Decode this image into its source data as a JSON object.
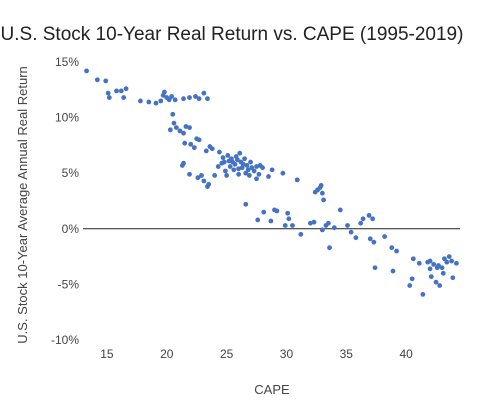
{
  "chart_data": {
    "type": "scatter",
    "title": "U.S. Stock 10-Year Real Return vs. CAPE (1995-2019)",
    "xlabel": "CAPE",
    "ylabel": "U.S. Stock 10-Year Average Annual Real Return",
    "xlim": [
      13,
      44.5
    ],
    "ylim": [
      -10,
      15
    ],
    "x_ticks": [
      15,
      20,
      25,
      30,
      35,
      40
    ],
    "y_ticks": [
      -10,
      -5,
      0,
      5,
      10,
      15
    ],
    "y_tick_format": "percent",
    "grid": false,
    "legend": "none",
    "point_color": "#4472c4",
    "series": [
      {
        "points": [
          [
            13.3,
            14.2
          ],
          [
            14.2,
            13.4
          ],
          [
            14.9,
            13.3
          ],
          [
            15.1,
            12.2
          ],
          [
            15.2,
            11.8
          ],
          [
            15.8,
            12.4
          ],
          [
            16.2,
            12.4
          ],
          [
            16.4,
            11.8
          ],
          [
            16.6,
            12.6
          ],
          [
            17.8,
            11.5
          ],
          [
            18.5,
            11.4
          ],
          [
            19.1,
            11.3
          ],
          [
            19.5,
            11.5
          ],
          [
            19.7,
            12.0
          ],
          [
            19.8,
            12.3
          ],
          [
            20.0,
            11.8
          ],
          [
            20.2,
            11.6
          ],
          [
            20.4,
            11.9
          ],
          [
            20.7,
            11.6
          ],
          [
            21.4,
            11.7
          ],
          [
            21.9,
            11.8
          ],
          [
            22.4,
            11.9
          ],
          [
            22.7,
            11.7
          ],
          [
            23.1,
            12.2
          ],
          [
            23.4,
            11.7
          ],
          [
            20.3,
            8.9
          ],
          [
            20.5,
            10.3
          ],
          [
            20.6,
            9.5
          ],
          [
            20.8,
            9.1
          ],
          [
            21.1,
            8.8
          ],
          [
            21.4,
            8.6
          ],
          [
            21.6,
            9.2
          ],
          [
            21.9,
            9.1
          ],
          [
            21.3,
            5.7
          ],
          [
            21.4,
            5.9
          ],
          [
            21.5,
            7.7
          ],
          [
            21.9,
            4.9
          ],
          [
            22.0,
            7.6
          ],
          [
            22.3,
            7.3
          ],
          [
            22.5,
            8.1
          ],
          [
            22.7,
            8.0
          ],
          [
            22.6,
            4.6
          ],
          [
            22.9,
            4.8
          ],
          [
            23.1,
            4.3
          ],
          [
            23.3,
            7.0
          ],
          [
            23.4,
            3.8
          ],
          [
            23.5,
            4.0
          ],
          [
            23.6,
            7.4
          ],
          [
            23.8,
            7.2
          ],
          [
            24.0,
            4.8
          ],
          [
            24.3,
            5.6
          ],
          [
            24.4,
            6.9
          ],
          [
            24.6,
            5.9
          ],
          [
            24.7,
            6.4
          ],
          [
            24.8,
            6.0
          ],
          [
            24.9,
            5.2
          ],
          [
            25.0,
            4.8
          ],
          [
            25.1,
            6.6
          ],
          [
            25.2,
            6.1
          ],
          [
            25.3,
            5.6
          ],
          [
            25.4,
            6.3
          ],
          [
            25.5,
            6.0
          ],
          [
            25.6,
            5.3
          ],
          [
            25.7,
            5.8
          ],
          [
            25.8,
            6.5
          ],
          [
            25.9,
            6.2
          ],
          [
            26.0,
            5.4
          ],
          [
            26.0,
            4.9
          ],
          [
            26.1,
            6.8
          ],
          [
            26.2,
            6.0
          ],
          [
            26.3,
            5.5
          ],
          [
            26.4,
            5.8
          ],
          [
            26.5,
            6.3
          ],
          [
            26.6,
            5.0
          ],
          [
            26.6,
            2.2
          ],
          [
            26.7,
            5.7
          ],
          [
            26.8,
            5.3
          ],
          [
            26.9,
            4.8
          ],
          [
            27.0,
            6.0
          ],
          [
            27.1,
            5.5
          ],
          [
            27.3,
            5.2
          ],
          [
            27.5,
            5.6
          ],
          [
            27.8,
            5.7
          ],
          [
            28.0,
            5.5
          ],
          [
            27.7,
            4.9
          ],
          [
            27.5,
            4.5
          ],
          [
            27.6,
            0.8
          ],
          [
            28.1,
            1.5
          ],
          [
            28.5,
            4.7
          ],
          [
            28.7,
            0.7
          ],
          [
            28.8,
            5.3
          ],
          [
            29.0,
            1.7
          ],
          [
            29.2,
            1.6
          ],
          [
            29.7,
            5.0
          ],
          [
            30.1,
            1.4
          ],
          [
            30.2,
            0.9
          ],
          [
            29.9,
            0.3
          ],
          [
            30.5,
            0.3
          ],
          [
            30.9,
            4.4
          ],
          [
            31.2,
            -0.5
          ],
          [
            32.0,
            0.5
          ],
          [
            32.3,
            0.6
          ],
          [
            32.4,
            3.3
          ],
          [
            32.6,
            3.5
          ],
          [
            32.8,
            3.7
          ],
          [
            32.9,
            3.9
          ],
          [
            33.0,
            3.2
          ],
          [
            33.1,
            2.6
          ],
          [
            33.0,
            -0.1
          ],
          [
            33.3,
            0.3
          ],
          [
            33.5,
            0.5
          ],
          [
            33.6,
            -1.7
          ],
          [
            34.0,
            0.1
          ],
          [
            34.5,
            1.7
          ],
          [
            35.1,
            0.3
          ],
          [
            35.4,
            -0.3
          ],
          [
            35.8,
            -0.8
          ],
          [
            36.2,
            0.5
          ],
          [
            36.4,
            0.9
          ],
          [
            36.9,
            1.2
          ],
          [
            37.2,
            0.9
          ],
          [
            37.0,
            -0.9
          ],
          [
            37.3,
            -1.2
          ],
          [
            37.4,
            -3.5
          ],
          [
            38.2,
            -0.7
          ],
          [
            38.8,
            -1.7
          ],
          [
            38.9,
            -3.8
          ],
          [
            39.2,
            -2.0
          ],
          [
            40.3,
            -5.1
          ],
          [
            40.6,
            -2.7
          ],
          [
            40.5,
            -4.5
          ],
          [
            41.1,
            -3.1
          ],
          [
            41.4,
            -5.9
          ],
          [
            41.8,
            -3.0
          ],
          [
            42.0,
            -2.9
          ],
          [
            42.1,
            -4.3
          ],
          [
            42.3,
            -3.2
          ],
          [
            42.5,
            -4.8
          ],
          [
            42.7,
            -3.3
          ],
          [
            42.8,
            -5.1
          ],
          [
            43.0,
            -3.5
          ],
          [
            43.2,
            -2.7
          ],
          [
            43.4,
            -3.0
          ],
          [
            43.6,
            -2.5
          ],
          [
            43.8,
            -2.9
          ],
          [
            43.9,
            -4.4
          ],
          [
            44.2,
            -3.1
          ],
          [
            42.0,
            -3.6
          ],
          [
            42.6,
            -3.5
          ],
          [
            43.1,
            -4.0
          ]
        ]
      }
    ]
  }
}
